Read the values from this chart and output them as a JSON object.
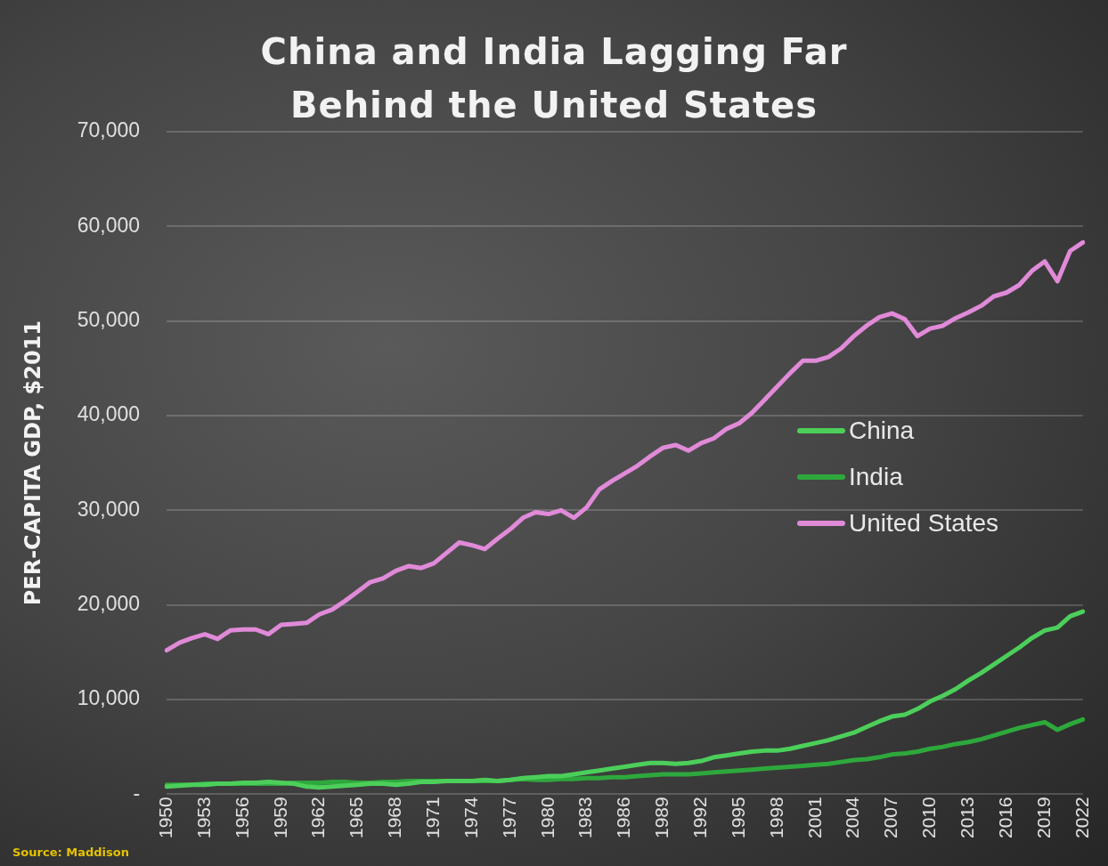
{
  "chart_data": {
    "type": "line",
    "title": "China and India Lagging Far Behind the United States",
    "ylabel": "PER-CAPITA GDP, $2011",
    "categories": [
      "1950",
      null,
      null,
      "1953",
      null,
      null,
      "1956",
      null,
      null,
      "1959",
      null,
      null,
      "1962",
      null,
      null,
      "1965",
      null,
      null,
      "1968",
      null,
      null,
      "1971",
      null,
      null,
      "1974",
      null,
      null,
      "1977",
      null,
      null,
      "1980",
      null,
      null,
      "1983",
      null,
      null,
      "1986",
      null,
      null,
      "1989",
      null,
      null,
      "1992",
      null,
      null,
      "1995",
      null,
      null,
      "1998",
      null,
      null,
      "2001",
      null,
      null,
      "2004",
      null,
      null,
      "2007",
      null,
      null,
      "2010",
      null,
      null,
      "2013",
      null,
      null,
      "2016",
      null,
      null,
      "2019",
      null,
      null,
      "2022"
    ],
    "series": [
      {
        "name": "China",
        "color": "#4ccf5a",
        "values": [
          800,
          900,
          1000,
          1000,
          1100,
          1100,
          1200,
          1200,
          1300,
          1200,
          1100,
          800,
          700,
          800,
          900,
          1000,
          1100,
          1100,
          1000,
          1100,
          1300,
          1300,
          1400,
          1400,
          1400,
          1500,
          1400,
          1500,
          1700,
          1800,
          1900,
          1900,
          2100,
          2300,
          2500,
          2700,
          2900,
          3100,
          3300,
          3300,
          3200,
          3300,
          3500,
          3900,
          4100,
          4300,
          4500,
          4600,
          4600,
          4800,
          5100,
          5400,
          5700,
          6100,
          6500,
          7100,
          7700,
          8200,
          8400,
          9000,
          9800,
          10400,
          11100,
          12000,
          12800,
          13700,
          14600,
          15500,
          16500,
          17300,
          17600,
          18800,
          19300
        ]
      },
      {
        "name": "India",
        "color": "#2ea83c",
        "values": [
          1000,
          1000,
          1000,
          1100,
          1100,
          1100,
          1100,
          1100,
          1100,
          1100,
          1200,
          1200,
          1200,
          1300,
          1300,
          1200,
          1200,
          1300,
          1300,
          1400,
          1400,
          1400,
          1400,
          1400,
          1400,
          1400,
          1400,
          1500,
          1600,
          1500,
          1500,
          1600,
          1600,
          1700,
          1700,
          1800,
          1800,
          1900,
          2000,
          2100,
          2100,
          2100,
          2200,
          2300,
          2400,
          2500,
          2600,
          2700,
          2800,
          2900,
          3000,
          3100,
          3200,
          3400,
          3600,
          3700,
          3900,
          4200,
          4300,
          4500,
          4800,
          5000,
          5300,
          5500,
          5800,
          6200,
          6600,
          7000,
          7300,
          7600,
          6800,
          7400,
          7900
        ]
      },
      {
        "name": "United States",
        "color": "#e08ad8",
        "values": [
          15200,
          16000,
          16500,
          16900,
          16400,
          17300,
          17400,
          17400,
          16900,
          17900,
          18000,
          18100,
          19000,
          19500,
          20400,
          21400,
          22400,
          22800,
          23600,
          24100,
          23900,
          24400,
          25500,
          26600,
          26300,
          25900,
          27000,
          28000,
          29200,
          29800,
          29600,
          30000,
          29200,
          30300,
          32200,
          33100,
          33900,
          34700,
          35700,
          36600,
          36900,
          36300,
          37100,
          37600,
          38600,
          39200,
          40300,
          41700,
          43100,
          44500,
          45800,
          45800,
          46200,
          47100,
          48400,
          49500,
          50400,
          50800,
          50200,
          48400,
          49200,
          49500,
          50300,
          50900,
          51600,
          52600,
          53000,
          53800,
          55300,
          56300,
          54200,
          57400,
          58300
        ]
      }
    ],
    "ylim": [
      0,
      70000
    ],
    "yticks": [
      {
        "value": 0,
        "label": "-"
      },
      {
        "value": 10000,
        "label": "10,000"
      },
      {
        "value": 20000,
        "label": "20,000"
      },
      {
        "value": 30000,
        "label": "30,000"
      },
      {
        "value": 40000,
        "label": "40,000"
      },
      {
        "value": 50000,
        "label": "50,000"
      },
      {
        "value": 60000,
        "label": "60,000"
      },
      {
        "value": 70000,
        "label": "70,000"
      }
    ],
    "grid": "y",
    "legend": "right",
    "marker": "none",
    "line_style": "solid",
    "annotations": [
      "Source: Maddison"
    ]
  }
}
